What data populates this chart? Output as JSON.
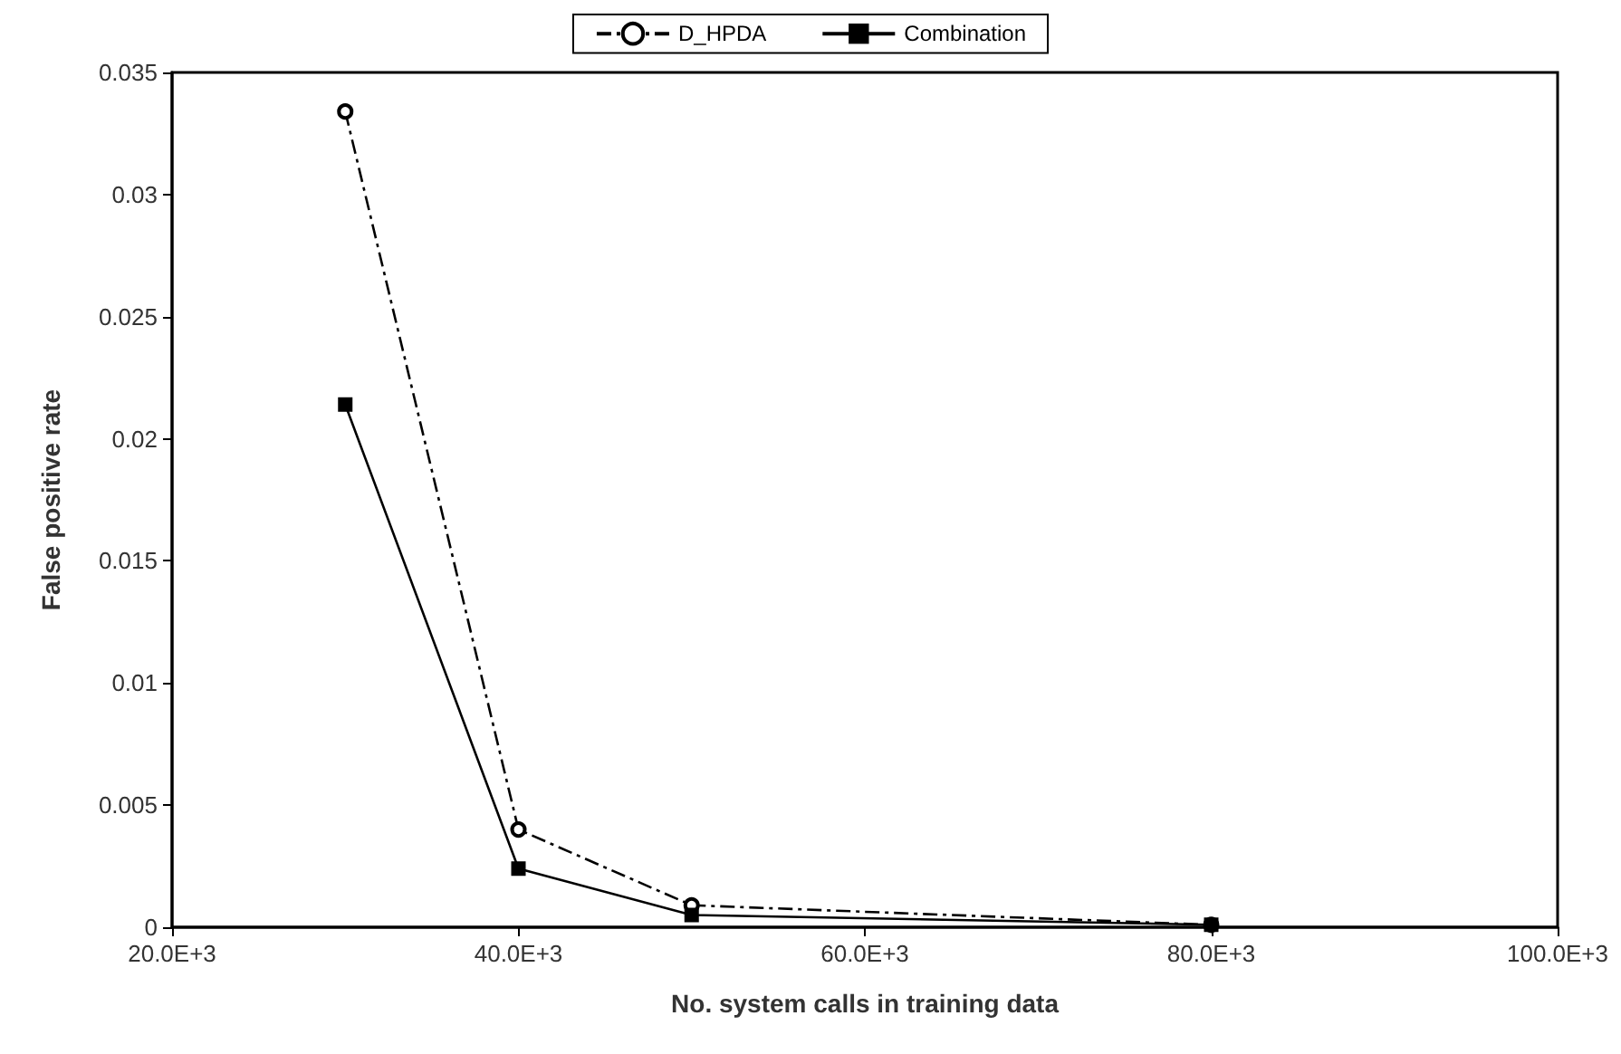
{
  "chart_data": {
    "type": "line",
    "xlabel": "No. system calls in training data",
    "ylabel": "False positive rate",
    "x": [
      30000,
      40000,
      50000,
      80000
    ],
    "series": [
      {
        "name": "D_HPDA",
        "color": "#000000",
        "marker": "circle",
        "line_style": "dashdot",
        "values": [
          0.0334,
          0.004,
          0.0009,
          0.0001
        ]
      },
      {
        "name": "Combination",
        "color": "#000000",
        "marker": "square",
        "line_style": "solid",
        "values": [
          0.0214,
          0.0024,
          0.0005,
          0.0001
        ]
      }
    ],
    "xlim": [
      20000,
      100000
    ],
    "xticks": [
      {
        "value": 20000,
        "label": "20.0E+3"
      },
      {
        "value": 40000,
        "label": "40.0E+3"
      },
      {
        "value": 60000,
        "label": "60.0E+3"
      },
      {
        "value": 80000,
        "label": "80.0E+3"
      },
      {
        "value": 100000,
        "label": "100.0E+3"
      }
    ],
    "ylim": [
      0,
      0.035
    ],
    "yticks": [
      0,
      0.005,
      0.01,
      0.015,
      0.02,
      0.025,
      0.03,
      0.035
    ],
    "grid": false,
    "legend": "top"
  }
}
